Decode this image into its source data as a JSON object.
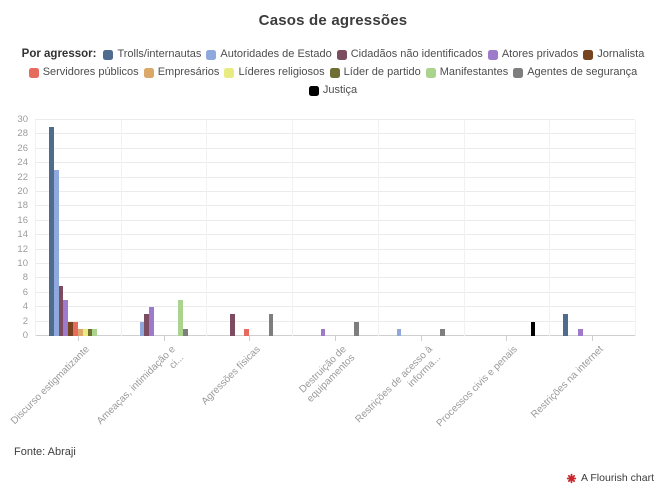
{
  "title": "Casos de agressões",
  "legend": {
    "title": "Por agressor:"
  },
  "chart_data": {
    "type": "bar",
    "grouped": true,
    "title": "Casos de agressões",
    "xlabel": "",
    "ylabel": "",
    "ylim": [
      0,
      30
    ],
    "ytick_step": 2,
    "grid": "horizontal",
    "legend_position": "top",
    "categories": [
      "Discurso estigmatizante",
      "Ameaças, intimidação e ci...",
      "Agressões físicas",
      "Destruição de equipamentos",
      "Restrições de acesso à informa...",
      "Processos civis e penais",
      "Restrições na internet"
    ],
    "series": [
      {
        "name": "Trolls/internautas",
        "color": "#4f6c8f",
        "values": [
          29,
          0,
          0,
          0,
          0,
          0,
          3
        ]
      },
      {
        "name": "Autoridades de Estado",
        "color": "#8fa9de",
        "values": [
          23,
          2,
          0,
          0,
          1,
          0,
          0
        ]
      },
      {
        "name": "Cidadãos não identificados",
        "color": "#7c4d61",
        "values": [
          7,
          3,
          3,
          0,
          0,
          0,
          0
        ]
      },
      {
        "name": "Atores privados",
        "color": "#9d7bca",
        "values": [
          5,
          4,
          0,
          1,
          0,
          0,
          1
        ]
      },
      {
        "name": "Jornalista",
        "color": "#75431d",
        "values": [
          2,
          0,
          0,
          0,
          0,
          0,
          0
        ]
      },
      {
        "name": "Servidores públicos",
        "color": "#e76a5e",
        "values": [
          2,
          0,
          1,
          0,
          0,
          0,
          0
        ]
      },
      {
        "name": "Empresários",
        "color": "#dba869",
        "values": [
          1,
          0,
          0,
          0,
          0,
          0,
          0
        ]
      },
      {
        "name": "Líderes religiosos",
        "color": "#e7eb80",
        "values": [
          1,
          0,
          0,
          0,
          0,
          0,
          0
        ]
      },
      {
        "name": "Líder de partido",
        "color": "#6f6e35",
        "values": [
          1,
          0,
          0,
          0,
          0,
          0,
          0
        ]
      },
      {
        "name": "Manifestantes",
        "color": "#aad48e",
        "values": [
          1,
          5,
          0,
          0,
          0,
          0,
          0
        ]
      },
      {
        "name": "Agentes de segurança",
        "color": "#7e7e7e",
        "values": [
          0,
          1,
          3,
          2,
          1,
          0,
          0
        ]
      },
      {
        "name": "Justiça",
        "color": "#000000",
        "values": [
          0,
          0,
          0,
          0,
          0,
          2,
          0
        ]
      }
    ]
  },
  "footer": {
    "source": "Fonte: Abraji",
    "attribution": "A Flourish chart"
  },
  "colors": {
    "title_text": "#3c3c3c",
    "axis_text": "#999999",
    "gridline": "#ebebeb",
    "flourish_red": "#c9252b"
  }
}
